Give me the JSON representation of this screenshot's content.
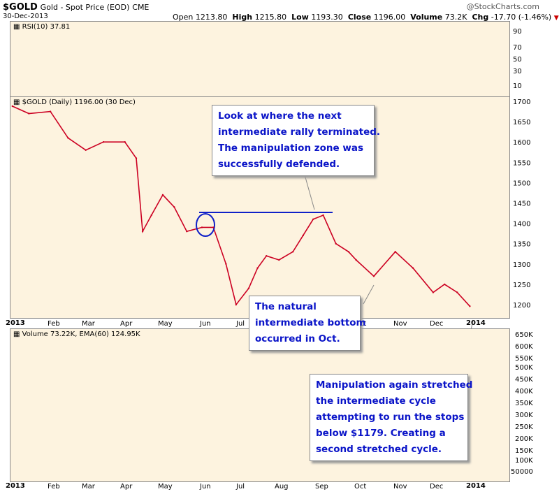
{
  "header": {
    "symbol": "$GOLD",
    "name": "Gold - Spot Price (EOD)",
    "exchange": "CME",
    "date": "30-Dec-2013",
    "open_label": "Open",
    "open": "1213.80",
    "high_label": "High",
    "high": "1215.80",
    "low_label": "Low",
    "low": "1193.30",
    "close_label": "Close",
    "close": "1196.00",
    "volume_label": "Volume",
    "volume": "73.2K",
    "chg_label": "Chg",
    "chg": "-17.70 (-1.46%)",
    "chg_arrow": "▼",
    "brand": "@StockCharts.com"
  },
  "rsi_panel": {
    "label": "RSI(10) 37.81",
    "ticks": [
      "90",
      "70",
      "50",
      "30",
      "10"
    ]
  },
  "price_panel": {
    "label": "$GOLD (Daily) 1196.00 (30 Dec)",
    "ticks": [
      "1700",
      "1650",
      "1600",
      "1550",
      "1500",
      "1450",
      "1400",
      "1350",
      "1300",
      "1250",
      "1200"
    ]
  },
  "volume_panel": {
    "label": "Volume 73.22K, EMA(60) 124.95K",
    "ticks": [
      "650K",
      "600K",
      "550K",
      "500K",
      "450K",
      "400K",
      "350K",
      "300K",
      "250K",
      "200K",
      "150K",
      "100K",
      "50000"
    ]
  },
  "x_axis": {
    "labels": [
      "2013",
      "Feb",
      "Mar",
      "Apr",
      "May",
      "Jun",
      "Jul",
      "Aug",
      "Sep",
      "Oct",
      "Nov",
      "Dec",
      "2014"
    ]
  },
  "annotations": {
    "top": [
      "Look at where the next",
      "intermediate rally terminated.",
      "The manipulation zone was",
      "successfully defended."
    ],
    "middle": [
      "The natural",
      "intermediate bottom",
      "occurred in Oct."
    ],
    "bottom": [
      "Manipulation again stretched",
      "the intermediate cycle",
      "attempting to run the stops",
      "below $1179. Creating a",
      "second stretched cycle."
    ]
  },
  "colors": {
    "panel_bg": "#fdf3df",
    "price_line": "#cc0022",
    "annotation_text": "#0a14c8",
    "resistance_line": "#1020c8"
  },
  "chart_data": {
    "type": "line",
    "title": "$GOLD (Daily) 1196.00 (30 Dec)",
    "xlabel": "",
    "ylabel": "",
    "ylim": [
      1170,
      1720
    ],
    "x": [
      "2013-01-02",
      "2013-01-15",
      "2013-02-01",
      "2013-02-15",
      "2013-03-01",
      "2013-03-15",
      "2013-04-01",
      "2013-04-10",
      "2013-04-15",
      "2013-04-22",
      "2013-05-01",
      "2013-05-10",
      "2013-05-20",
      "2013-06-01",
      "2013-06-10",
      "2013-06-20",
      "2013-06-28",
      "2013-07-08",
      "2013-07-15",
      "2013-07-22",
      "2013-08-01",
      "2013-08-12",
      "2013-08-20",
      "2013-08-28",
      "2013-09-05",
      "2013-09-15",
      "2013-09-25",
      "2013-10-01",
      "2013-10-15",
      "2013-11-01",
      "2013-11-15",
      "2013-12-01",
      "2013-12-10",
      "2013-12-20",
      "2013-12-30"
    ],
    "series": [
      {
        "values": [
          1688,
          1670,
          1675,
          1610,
          1580,
          1600,
          1600,
          1560,
          1380,
          1420,
          1470,
          1440,
          1380,
          1390,
          1390,
          1300,
          1200,
          1240,
          1290,
          1320,
          1310,
          1330,
          1370,
          1410,
          1420,
          1350,
          1330,
          1310,
          1270,
          1330,
          1290,
          1230,
          1250,
          1230,
          1196
        ]
      }
    ]
  }
}
